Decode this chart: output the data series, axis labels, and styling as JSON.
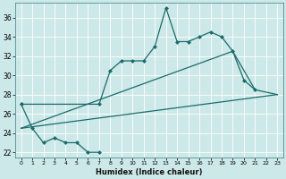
{
  "xlabel": "Humidex (Indice chaleur)",
  "background_color": "#cde8e8",
  "grid_color": "#b0d0d0",
  "line_color": "#1a6b6b",
  "xlim": [
    -0.5,
    23.5
  ],
  "ylim": [
    21.5,
    37.5
  ],
  "xticks": [
    0,
    1,
    2,
    3,
    4,
    5,
    6,
    7,
    8,
    9,
    10,
    11,
    12,
    13,
    14,
    15,
    16,
    17,
    18,
    19,
    20,
    21,
    22,
    23
  ],
  "yticks": [
    22,
    24,
    26,
    28,
    30,
    32,
    34,
    36
  ],
  "series1_x": [
    0,
    1,
    2,
    3,
    4,
    5,
    6,
    7
  ],
  "series1_y": [
    27,
    24.5,
    23,
    23.5,
    23,
    23,
    22,
    22
  ],
  "series2_x": [
    0,
    7,
    8,
    9,
    10,
    11,
    12,
    13,
    14,
    15,
    16,
    17,
    18,
    19,
    20,
    21
  ],
  "series2_y": [
    27,
    27,
    30.5,
    31.5,
    31.5,
    31.5,
    33,
    37,
    33.5,
    33.5,
    34,
    34.5,
    34,
    32.5,
    29.5,
    28.5
  ],
  "series3_x": [
    0,
    23
  ],
  "series3_y": [
    24.5,
    28
  ],
  "series4_x": [
    0,
    19,
    21,
    23
  ],
  "series4_y": [
    24.5,
    32.5,
    28.5,
    28
  ],
  "figsize": [
    3.2,
    2.0
  ],
  "dpi": 100
}
